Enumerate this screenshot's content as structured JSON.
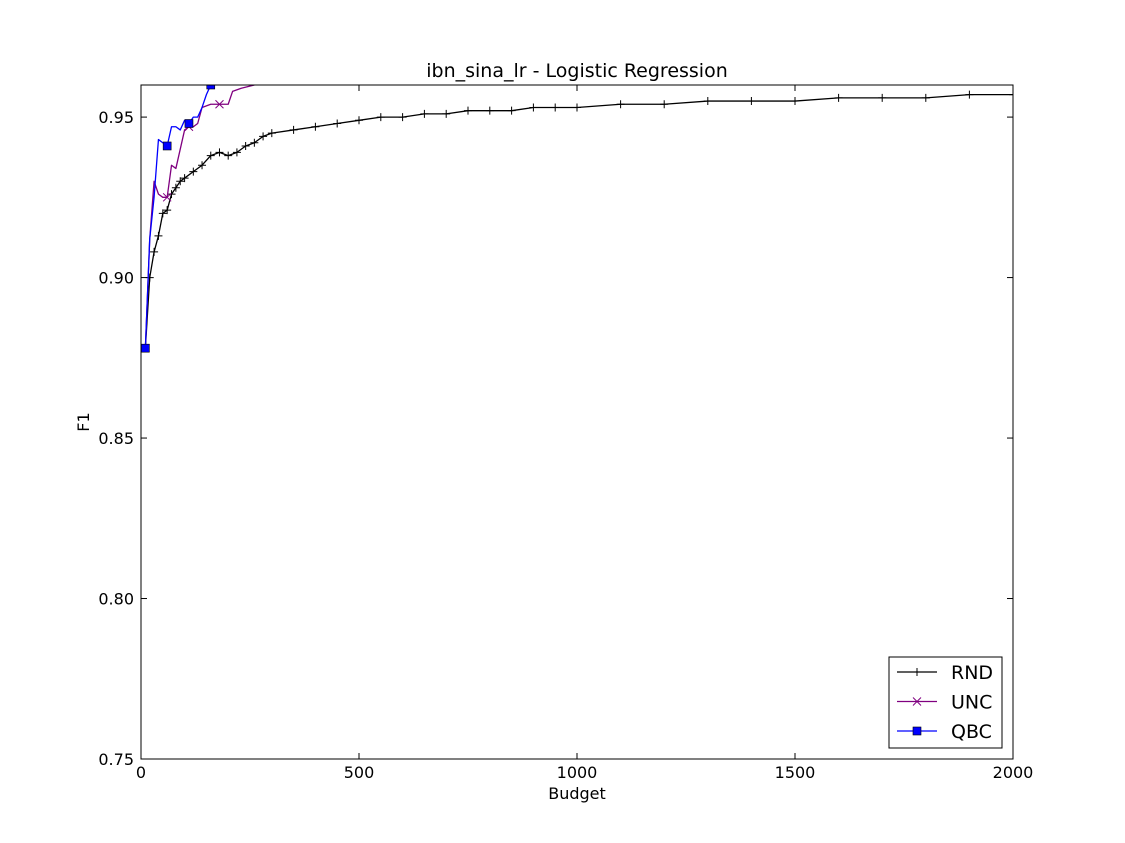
{
  "chart_data": {
    "type": "line",
    "title": "ibn_sina_lr - Logistic Regression",
    "xlabel": "Budget",
    "ylabel": "F1",
    "xlim": [
      0,
      2000
    ],
    "ylim": [
      0.75,
      0.96
    ],
    "xticks": [
      0,
      500,
      1000,
      1500,
      2000
    ],
    "xtick_labels": [
      "0",
      "500",
      "1000",
      "1500",
      "2000"
    ],
    "yticks": [
      0.75,
      0.8,
      0.85,
      0.9,
      0.95
    ],
    "ytick_labels": [
      "0.75",
      "0.80",
      "0.85",
      "0.90",
      "0.95"
    ],
    "grid": false,
    "legend_position": "bottom-right",
    "series": [
      {
        "name": "RND",
        "color": "#000000",
        "marker": "plus",
        "x": [
          10,
          20,
          30,
          40,
          50,
          60,
          70,
          80,
          90,
          100,
          120,
          140,
          160,
          180,
          200,
          220,
          240,
          260,
          280,
          300,
          350,
          400,
          450,
          500,
          550,
          600,
          650,
          700,
          750,
          800,
          850,
          900,
          950,
          1000,
          1100,
          1200,
          1300,
          1400,
          1500,
          1600,
          1700,
          1800,
          1900,
          2000
        ],
        "y": [
          0.878,
          0.9,
          0.908,
          0.913,
          0.92,
          0.921,
          0.926,
          0.928,
          0.93,
          0.931,
          0.933,
          0.935,
          0.938,
          0.939,
          0.938,
          0.939,
          0.941,
          0.942,
          0.944,
          0.945,
          0.946,
          0.947,
          0.948,
          0.949,
          0.95,
          0.95,
          0.951,
          0.951,
          0.952,
          0.952,
          0.952,
          0.953,
          0.953,
          0.953,
          0.954,
          0.954,
          0.955,
          0.955,
          0.955,
          0.956,
          0.956,
          0.956,
          0.957,
          0.957
        ]
      },
      {
        "name": "UNC",
        "color": "#800080",
        "marker": "x",
        "x": [
          10,
          20,
          30,
          40,
          50,
          60,
          70,
          80,
          90,
          100,
          110,
          120,
          130,
          140,
          160,
          180,
          200,
          210,
          230,
          260
        ],
        "y": [
          0.878,
          0.912,
          0.93,
          0.926,
          0.925,
          0.925,
          0.935,
          0.934,
          0.94,
          0.946,
          0.947,
          0.947,
          0.948,
          0.953,
          0.954,
          0.954,
          0.954,
          0.958,
          0.959,
          0.96
        ]
      },
      {
        "name": "QBC",
        "color": "#0000ff",
        "marker": "square",
        "x": [
          10,
          20,
          30,
          40,
          50,
          60,
          70,
          80,
          90,
          100,
          110,
          120,
          130,
          140,
          150,
          160
        ],
        "y": [
          0.878,
          0.912,
          0.925,
          0.943,
          0.942,
          0.941,
          0.947,
          0.947,
          0.946,
          0.949,
          0.948,
          0.95,
          0.95,
          0.953,
          0.957,
          0.96
        ]
      }
    ]
  }
}
